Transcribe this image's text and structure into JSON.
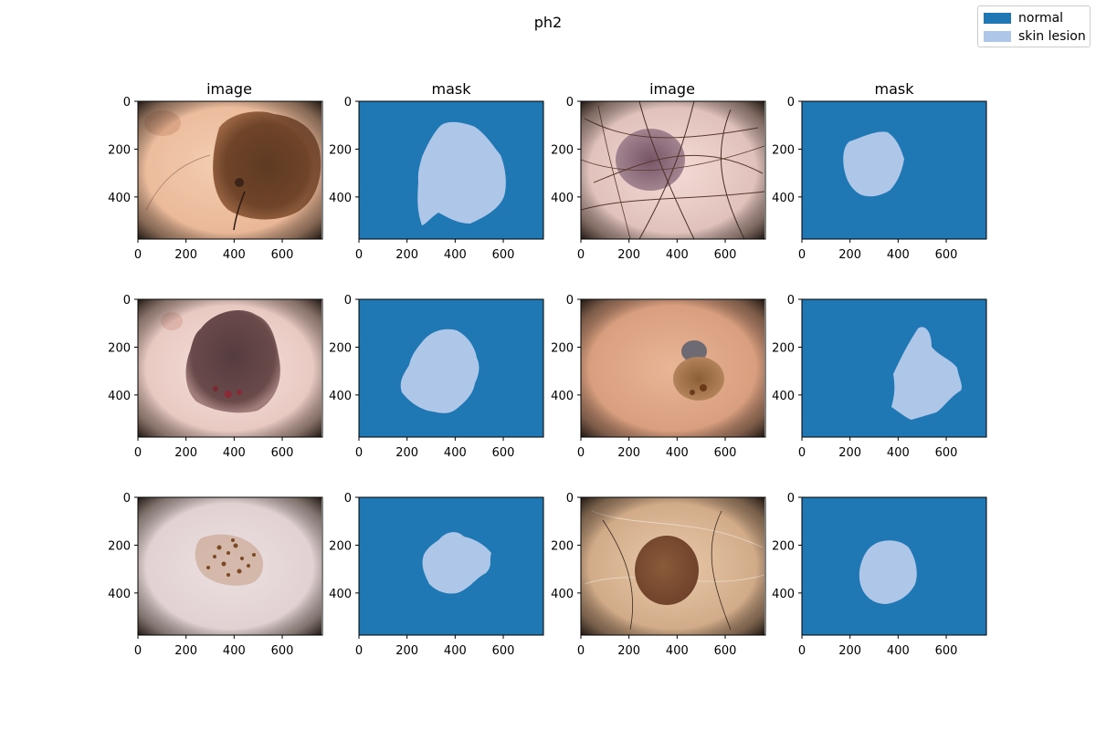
{
  "figure": {
    "suptitle": "ph2",
    "columns": [
      {
        "title": "image",
        "kind": "image"
      },
      {
        "title": "mask",
        "kind": "mask"
      },
      {
        "title": "image",
        "kind": "image"
      },
      {
        "title": "mask",
        "kind": "mask"
      }
    ],
    "x_ticks": [
      "0",
      "200",
      "400",
      "600"
    ],
    "y_ticks": [
      "0",
      "200",
      "400"
    ],
    "legend": [
      {
        "label": "normal",
        "color": "#1f77b4"
      },
      {
        "label": "skin lesion",
        "color": "#aec7e8"
      }
    ],
    "colors": {
      "mask_background": "#1f77b4",
      "mask_lesion": "#aec7e8"
    }
  }
}
